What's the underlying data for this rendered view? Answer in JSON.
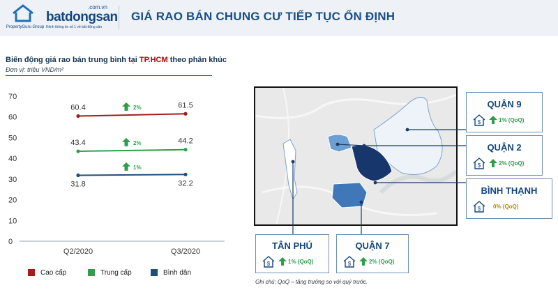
{
  "header": {
    "title": "GIÁ RAO BÁN CHUNG CƯ TIẾP TỤC ỔN ĐỊNH",
    "logo_propertyguru": "PropertyGuru Group",
    "logo_bds_name": "batdongsan",
    "logo_bds_domain": ".com.vn",
    "logo_bds_tagline": "Kênh thông tin số 1 về bất động sản"
  },
  "chart_header": {
    "title_prefix": "Biến động giá rao bán trung bình tại ",
    "title_highlight": "TP.HCM",
    "title_suffix": " theo phân khúc",
    "unit": "Đơn vị: triệu VND/m²"
  },
  "chart_data": {
    "type": "line",
    "categories": [
      "Q2/2020",
      "Q3/2020"
    ],
    "y_ticks": [
      "0",
      "10",
      "20",
      "30",
      "40",
      "50",
      "60",
      "70"
    ],
    "ylim": [
      0,
      70
    ],
    "grid": false,
    "legend_position": "bottom",
    "series": [
      {
        "name": "Cao cấp",
        "color": "#a51c1c",
        "values": [
          60.4,
          61.5
        ],
        "labels": [
          "60.4",
          "61.5"
        ],
        "change": "2%"
      },
      {
        "name": "Trung cấp",
        "color": "#2e9e4b",
        "values": [
          43.4,
          44.2
        ],
        "labels": [
          "43.4",
          "44.2"
        ],
        "change": "2%"
      },
      {
        "name": "Bình dân",
        "color": "#1f4e79",
        "values": [
          31.8,
          32.2
        ],
        "labels": [
          "31.8",
          "32.2"
        ],
        "change": "1%"
      }
    ]
  },
  "districts": {
    "q9": {
      "name": "QUẬN 9",
      "change": "1% (QoQ)"
    },
    "q2": {
      "name": "QUẬN 2",
      "change": "2% (QoQ)"
    },
    "binhthanh": {
      "name": "BÌNH THẠNH",
      "change": "0% (QoQ)"
    },
    "tanphu": {
      "name": "TÂN PHÚ",
      "change": "1% (QoQ)"
    },
    "q7": {
      "name": "QUẬN 7",
      "change": "2% (QoQ)"
    }
  },
  "note": "Ghi chú: QoQ – tăng trưởng so với quý trước.",
  "colors": {
    "brand_blue": "#12457f",
    "up_green": "#2e9e4b",
    "flat_gold": "#b08a00",
    "map_dark": "#17366b",
    "map_mid": "#3f77b9",
    "map_light": "#c9dcef",
    "map_pale": "#eef3f9"
  },
  "icons": [
    "house-dollar-icon",
    "arrow-up-icon"
  ]
}
